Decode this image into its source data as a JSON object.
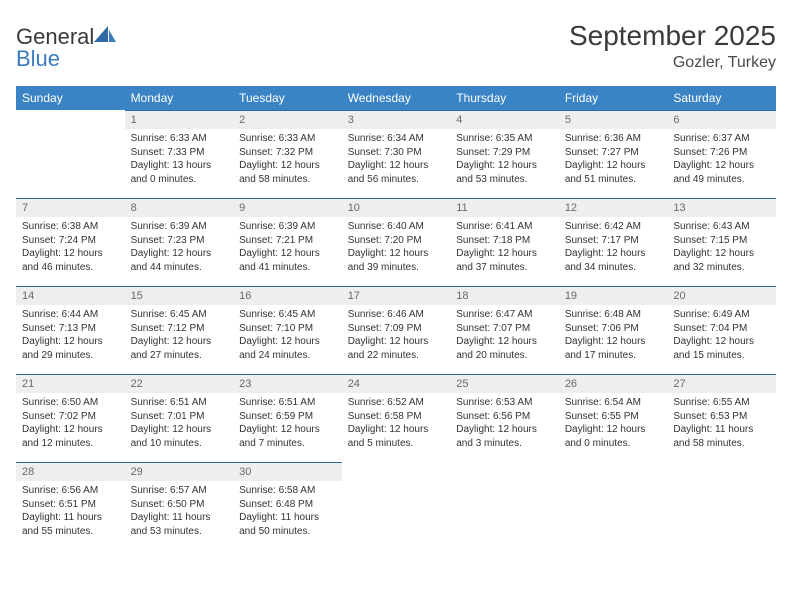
{
  "brand": {
    "name_general": "General",
    "name_blue": "Blue"
  },
  "header": {
    "title": "September 2025",
    "location": "Gozler, Turkey"
  },
  "colors": {
    "header_bg": "#3a84c6",
    "daynum_bg": "#eceeef",
    "rule": "#2f6aa3",
    "accent": "#3a7cbf"
  },
  "calendar": {
    "weekdays": [
      "Sunday",
      "Monday",
      "Tuesday",
      "Wednesday",
      "Thursday",
      "Friday",
      "Saturday"
    ],
    "weeks": [
      [
        null,
        {
          "n": "1",
          "sr": "Sunrise: 6:33 AM",
          "ss": "Sunset: 7:33 PM",
          "dl": "Daylight: 13 hours and 0 minutes."
        },
        {
          "n": "2",
          "sr": "Sunrise: 6:33 AM",
          "ss": "Sunset: 7:32 PM",
          "dl": "Daylight: 12 hours and 58 minutes."
        },
        {
          "n": "3",
          "sr": "Sunrise: 6:34 AM",
          "ss": "Sunset: 7:30 PM",
          "dl": "Daylight: 12 hours and 56 minutes."
        },
        {
          "n": "4",
          "sr": "Sunrise: 6:35 AM",
          "ss": "Sunset: 7:29 PM",
          "dl": "Daylight: 12 hours and 53 minutes."
        },
        {
          "n": "5",
          "sr": "Sunrise: 6:36 AM",
          "ss": "Sunset: 7:27 PM",
          "dl": "Daylight: 12 hours and 51 minutes."
        },
        {
          "n": "6",
          "sr": "Sunrise: 6:37 AM",
          "ss": "Sunset: 7:26 PM",
          "dl": "Daylight: 12 hours and 49 minutes."
        }
      ],
      [
        {
          "n": "7",
          "sr": "Sunrise: 6:38 AM",
          "ss": "Sunset: 7:24 PM",
          "dl": "Daylight: 12 hours and 46 minutes."
        },
        {
          "n": "8",
          "sr": "Sunrise: 6:39 AM",
          "ss": "Sunset: 7:23 PM",
          "dl": "Daylight: 12 hours and 44 minutes."
        },
        {
          "n": "9",
          "sr": "Sunrise: 6:39 AM",
          "ss": "Sunset: 7:21 PM",
          "dl": "Daylight: 12 hours and 41 minutes."
        },
        {
          "n": "10",
          "sr": "Sunrise: 6:40 AM",
          "ss": "Sunset: 7:20 PM",
          "dl": "Daylight: 12 hours and 39 minutes."
        },
        {
          "n": "11",
          "sr": "Sunrise: 6:41 AM",
          "ss": "Sunset: 7:18 PM",
          "dl": "Daylight: 12 hours and 37 minutes."
        },
        {
          "n": "12",
          "sr": "Sunrise: 6:42 AM",
          "ss": "Sunset: 7:17 PM",
          "dl": "Daylight: 12 hours and 34 minutes."
        },
        {
          "n": "13",
          "sr": "Sunrise: 6:43 AM",
          "ss": "Sunset: 7:15 PM",
          "dl": "Daylight: 12 hours and 32 minutes."
        }
      ],
      [
        {
          "n": "14",
          "sr": "Sunrise: 6:44 AM",
          "ss": "Sunset: 7:13 PM",
          "dl": "Daylight: 12 hours and 29 minutes."
        },
        {
          "n": "15",
          "sr": "Sunrise: 6:45 AM",
          "ss": "Sunset: 7:12 PM",
          "dl": "Daylight: 12 hours and 27 minutes."
        },
        {
          "n": "16",
          "sr": "Sunrise: 6:45 AM",
          "ss": "Sunset: 7:10 PM",
          "dl": "Daylight: 12 hours and 24 minutes."
        },
        {
          "n": "17",
          "sr": "Sunrise: 6:46 AM",
          "ss": "Sunset: 7:09 PM",
          "dl": "Daylight: 12 hours and 22 minutes."
        },
        {
          "n": "18",
          "sr": "Sunrise: 6:47 AM",
          "ss": "Sunset: 7:07 PM",
          "dl": "Daylight: 12 hours and 20 minutes."
        },
        {
          "n": "19",
          "sr": "Sunrise: 6:48 AM",
          "ss": "Sunset: 7:06 PM",
          "dl": "Daylight: 12 hours and 17 minutes."
        },
        {
          "n": "20",
          "sr": "Sunrise: 6:49 AM",
          "ss": "Sunset: 7:04 PM",
          "dl": "Daylight: 12 hours and 15 minutes."
        }
      ],
      [
        {
          "n": "21",
          "sr": "Sunrise: 6:50 AM",
          "ss": "Sunset: 7:02 PM",
          "dl": "Daylight: 12 hours and 12 minutes."
        },
        {
          "n": "22",
          "sr": "Sunrise: 6:51 AM",
          "ss": "Sunset: 7:01 PM",
          "dl": "Daylight: 12 hours and 10 minutes."
        },
        {
          "n": "23",
          "sr": "Sunrise: 6:51 AM",
          "ss": "Sunset: 6:59 PM",
          "dl": "Daylight: 12 hours and 7 minutes."
        },
        {
          "n": "24",
          "sr": "Sunrise: 6:52 AM",
          "ss": "Sunset: 6:58 PM",
          "dl": "Daylight: 12 hours and 5 minutes."
        },
        {
          "n": "25",
          "sr": "Sunrise: 6:53 AM",
          "ss": "Sunset: 6:56 PM",
          "dl": "Daylight: 12 hours and 3 minutes."
        },
        {
          "n": "26",
          "sr": "Sunrise: 6:54 AM",
          "ss": "Sunset: 6:55 PM",
          "dl": "Daylight: 12 hours and 0 minutes."
        },
        {
          "n": "27",
          "sr": "Sunrise: 6:55 AM",
          "ss": "Sunset: 6:53 PM",
          "dl": "Daylight: 11 hours and 58 minutes."
        }
      ],
      [
        {
          "n": "28",
          "sr": "Sunrise: 6:56 AM",
          "ss": "Sunset: 6:51 PM",
          "dl": "Daylight: 11 hours and 55 minutes."
        },
        {
          "n": "29",
          "sr": "Sunrise: 6:57 AM",
          "ss": "Sunset: 6:50 PM",
          "dl": "Daylight: 11 hours and 53 minutes."
        },
        {
          "n": "30",
          "sr": "Sunrise: 6:58 AM",
          "ss": "Sunset: 6:48 PM",
          "dl": "Daylight: 11 hours and 50 minutes."
        },
        null,
        null,
        null,
        null
      ]
    ]
  }
}
